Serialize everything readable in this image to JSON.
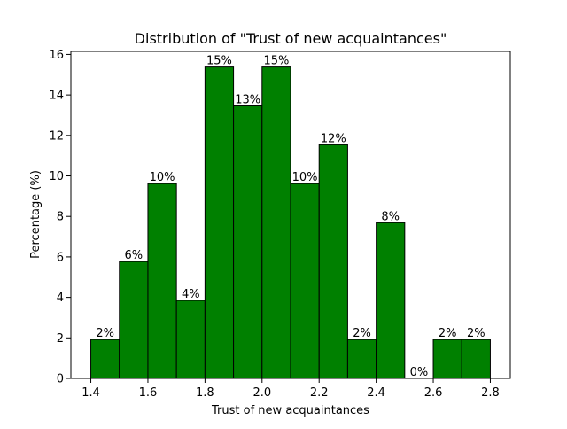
{
  "chart_data": {
    "type": "bar",
    "title": "Distribution of \"Trust of new acquaintances\"",
    "xlabel": "Trust of new acquaintances",
    "ylabel": "Percentage (%)",
    "bin_edges": [
      1.4,
      1.5,
      1.6,
      1.7,
      1.8,
      1.9,
      2.0,
      2.1,
      2.2,
      2.3,
      2.4,
      2.5,
      2.6,
      2.7,
      2.8
    ],
    "values": [
      1.92,
      5.77,
      9.62,
      3.85,
      15.38,
      13.46,
      15.38,
      9.62,
      11.54,
      1.92,
      7.69,
      0.0,
      1.92,
      1.92
    ],
    "bar_labels": [
      "2%",
      "6%",
      "10%",
      "4%",
      "15%",
      "13%",
      "15%",
      "10%",
      "12%",
      "2%",
      "8%",
      "0%",
      "2%",
      "2%"
    ],
    "xlim": [
      1.33,
      2.87
    ],
    "ylim": [
      0,
      16.15
    ],
    "xticks": [
      1.4,
      1.6,
      1.8,
      2.0,
      2.2,
      2.4,
      2.6,
      2.8
    ],
    "xtick_labels": [
      "1.4",
      "1.6",
      "1.8",
      "2.0",
      "2.2",
      "2.4",
      "2.6",
      "2.8"
    ],
    "yticks": [
      0,
      2,
      4,
      6,
      8,
      10,
      12,
      14,
      16
    ],
    "ytick_labels": [
      "0",
      "2",
      "4",
      "6",
      "8",
      "10",
      "12",
      "14",
      "16"
    ],
    "bar_color": "#008000",
    "edge_color": "#000000",
    "grid": false,
    "legend": "none"
  }
}
